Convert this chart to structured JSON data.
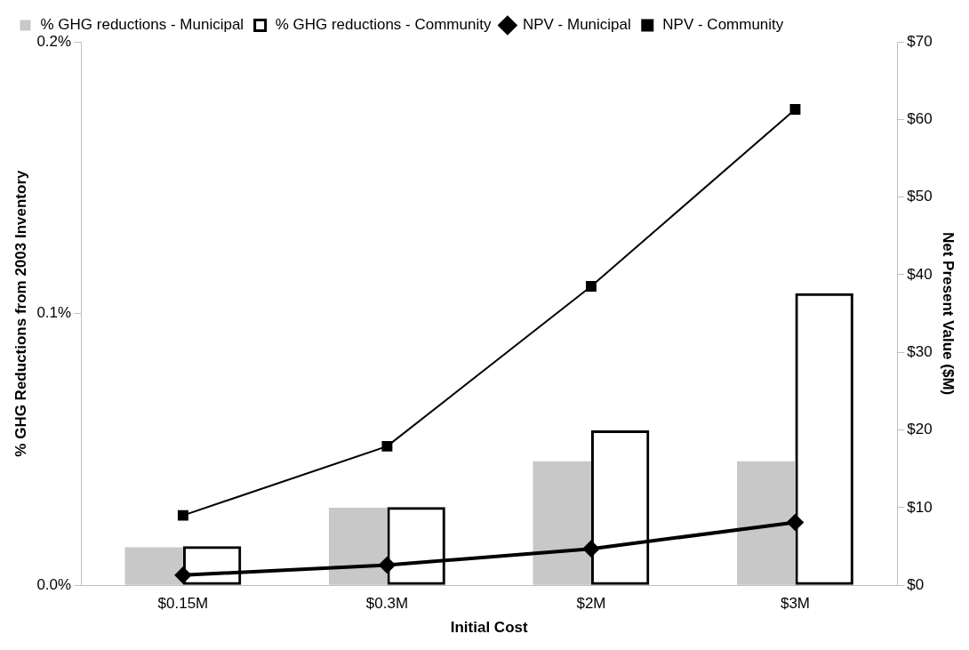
{
  "chart_data": {
    "type": "bar",
    "xlabel": "Initial Cost",
    "ylabel": "% GHG Reductions from 2003 Inventory",
    "y2label": "Net Present Value ($M)",
    "categories": [
      "$0.15M",
      "$0.3M",
      "$2M",
      "$3M"
    ],
    "series": [
      {
        "name": "% GHG reductions - Municipal",
        "color": "#c8c8c8",
        "values": [
          0.014,
          0.0285,
          0.0456,
          0.0456
        ]
      },
      {
        "name": "% GHG reductions - Community",
        "color": "#000000",
        "values": [
          0.0144,
          0.0288,
          0.057,
          0.1075
        ]
      },
      {
        "name": "NPV - Municipal",
        "type": "line",
        "axis": "y2",
        "color": "#000000",
        "marker": "diamond",
        "values": [
          1.3,
          2.6,
          4.7,
          8.1
        ]
      },
      {
        "name": "NPV - Community",
        "type": "line",
        "axis": "y2",
        "color": "#000000",
        "marker": "square",
        "values": [
          9.0,
          17.9,
          38.5,
          61.3
        ]
      }
    ],
    "ylim": [
      0,
      0.2
    ],
    "yticks": [
      {
        "value": 0,
        "label": "0.0%"
      },
      {
        "value": 0.1,
        "label": "0.1%"
      },
      {
        "value": 0.2,
        "label": "0.2%"
      }
    ],
    "y2lim": [
      0,
      70
    ],
    "y2ticks": [
      {
        "value": 0,
        "label": "$0"
      },
      {
        "value": 10,
        "label": "$10"
      },
      {
        "value": 20,
        "label": "$20"
      },
      {
        "value": 30,
        "label": "$30"
      },
      {
        "value": 40,
        "label": "$40"
      },
      {
        "value": 50,
        "label": "$50"
      },
      {
        "value": 60,
        "label": "$60"
      },
      {
        "value": 70,
        "label": "$70"
      }
    ],
    "grid": false,
    "legend": "top left"
  }
}
